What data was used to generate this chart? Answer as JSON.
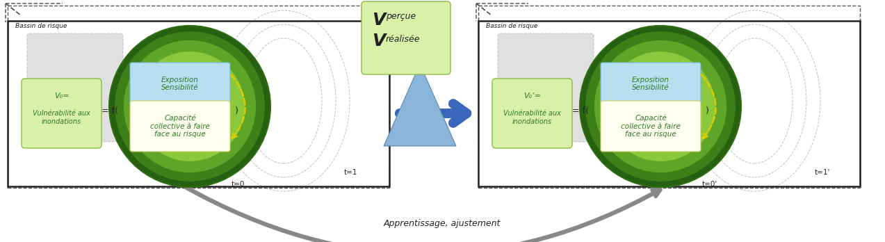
{
  "bg_color": "#ffffff",
  "fig_width": 12.73,
  "fig_height": 3.48,
  "bassin_text": "Bassin de risque",
  "exposition_text": "Exposition\nSensibilité",
  "capacite_text": "Capacité\ncollective à faire\nface au risque",
  "eq_text": "= f(",
  "close_paren": ")",
  "t0_text": "t=0",
  "t1_text": "t=1",
  "t0prime_text": "t=0'",
  "t1prime_text": "t=1'",
  "apprentissage_text": "Apprentissage, ajustement",
  "v0_label_left": "V₀=",
  "v0_label_right": "V₀’=",
  "vuln_text": "Vulnérabilité aux\ninondations",
  "vp_big": "V",
  "vp_sub": "perçue",
  "vr_big": "V",
  "vr_sub": "réalisée",
  "green_ell_dark": "#2d6e10",
  "green_ell_mid": "#4d9920",
  "green_ell_light": "#7dbc3a",
  "green_ell_bright": "#a8d458",
  "green_box_bg": "#d8f0a8",
  "green_box_border": "#88bb44",
  "blue_box_bg": "#b8dff0",
  "blue_box_border": "#70b8e0",
  "yellow_box_bg": "#fffff0",
  "yellow_box_border": "#cccc66",
  "grey_inner_bg": "#c8c8c8",
  "grey_inner_border": "#aaaaaa",
  "blue_arrow_color": "#3a66bb",
  "blue_tri_face": "#8ab4d8",
  "blue_tri_edge": "#5588aa",
  "vbox_bg": "#d8f0a8",
  "vbox_border": "#88bb44",
  "curve_arrow_color": "#888888",
  "text_green": "#2d7a1f",
  "text_dark": "#222222",
  "dash_color": "#555555",
  "solid_color": "#222222"
}
